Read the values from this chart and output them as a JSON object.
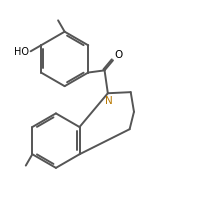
{
  "bg_color": "#ffffff",
  "line_color": "#555555",
  "lw": 1.4,
  "N_color": "#b87800",
  "label_fontsize": 7.0,
  "figsize": [
    1.99,
    2.07
  ],
  "dpi": 100,
  "xlim": [
    0.0,
    9.0
  ],
  "ylim": [
    0.0,
    9.5
  ]
}
